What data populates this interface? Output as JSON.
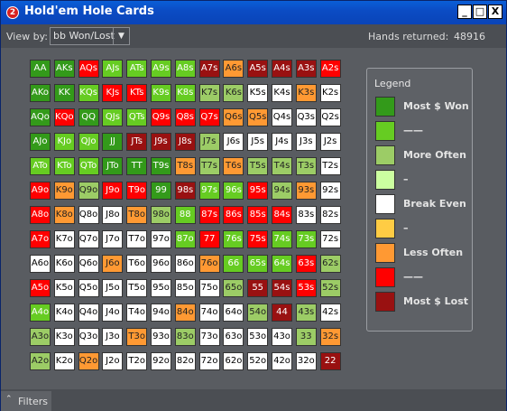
{
  "window": {
    "title": "Hold'em Hole Cards",
    "app_icon_text": "2",
    "min_symbol": "_",
    "max_symbol": "□",
    "close_symbol": "X"
  },
  "toolbar": {
    "viewby_label": "View by:",
    "viewby_value": "bb Won/Lost",
    "hands_label": "Hands returned:",
    "hands_value": "48916"
  },
  "legend": {
    "title": "Legend",
    "items": [
      {
        "label": "Most $ Won",
        "color": "#339a1a"
      },
      {
        "label": "——",
        "color": "#66cc22"
      },
      {
        "label": "More Often",
        "color": "#9ccc66"
      },
      {
        "label": "–",
        "color": "#ccffa0"
      },
      {
        "label": "Break Even",
        "color": "#ffffff"
      },
      {
        "label": "–",
        "color": "#ffcc44"
      },
      {
        "label": "Less Often",
        "color": "#ff9933"
      },
      {
        "label": "——",
        "color": "#ff0000"
      },
      {
        "label": "Most $ Lost",
        "color": "#991111"
      }
    ]
  },
  "palette": {
    "dg": "#339a1a",
    "g": "#66cc22",
    "lg": "#9ccc66",
    "vlg": "#ccffa0",
    "w": "#ffffff",
    "y": "#ffcc44",
    "o": "#ff9933",
    "r": "#ff0000",
    "dr": "#991111"
  },
  "grid": {
    "rows": [
      [
        "AA",
        "AKs",
        "AQs",
        "AJs",
        "ATs",
        "A9s",
        "A8s",
        "A7s",
        "A6s",
        "A5s",
        "A4s",
        "A3s",
        "A2s"
      ],
      [
        "AKo",
        "KK",
        "KQs",
        "KJs",
        "KTs",
        "K9s",
        "K8s",
        "K7s",
        "K6s",
        "K5s",
        "K4s",
        "K3s",
        "K2s"
      ],
      [
        "AQo",
        "KQo",
        "QQ",
        "QJs",
        "QTs",
        "Q9s",
        "Q8s",
        "Q7s",
        "Q6s",
        "Q5s",
        "Q4s",
        "Q3s",
        "Q2s"
      ],
      [
        "AJo",
        "KJo",
        "QJo",
        "JJ",
        "JTs",
        "J9s",
        "J8s",
        "J7s",
        "J6s",
        "J5s",
        "J4s",
        "J3s",
        "J2s"
      ],
      [
        "ATo",
        "KTo",
        "QTo",
        "JTo",
        "TT",
        "T9s",
        "T8s",
        "T7s",
        "T6s",
        "T5s",
        "T4s",
        "T3s",
        "T2s"
      ],
      [
        "A9o",
        "K9o",
        "Q9o",
        "J9o",
        "T9o",
        "99",
        "98s",
        "97s",
        "96s",
        "95s",
        "94s",
        "93s",
        "92s"
      ],
      [
        "A8o",
        "K8o",
        "Q8o",
        "J8o",
        "T8o",
        "98o",
        "88",
        "87s",
        "86s",
        "85s",
        "84s",
        "83s",
        "82s"
      ],
      [
        "A7o",
        "K7o",
        "Q7o",
        "J7o",
        "T7o",
        "97o",
        "87o",
        "77",
        "76s",
        "75s",
        "74s",
        "73s",
        "72s"
      ],
      [
        "A6o",
        "K6o",
        "Q6o",
        "J6o",
        "T6o",
        "96o",
        "86o",
        "76o",
        "66",
        "65s",
        "64s",
        "63s",
        "62s"
      ],
      [
        "A5o",
        "K5o",
        "Q5o",
        "J5o",
        "T5o",
        "95o",
        "85o",
        "75o",
        "65o",
        "55",
        "54s",
        "53s",
        "52s"
      ],
      [
        "A4o",
        "K4o",
        "Q4o",
        "J4o",
        "T4o",
        "94o",
        "84o",
        "74o",
        "64o",
        "54o",
        "44",
        "43s",
        "42s"
      ],
      [
        "A3o",
        "K3o",
        "Q3o",
        "J3o",
        "T3o",
        "93o",
        "83o",
        "73o",
        "63o",
        "53o",
        "43o",
        "33",
        "32s"
      ],
      [
        "A2o",
        "K2o",
        "Q2o",
        "J2o",
        "T2o",
        "92o",
        "82o",
        "72o",
        "62o",
        "52o",
        "42o",
        "32o",
        "22"
      ]
    ],
    "colors": [
      [
        "dg",
        "dg",
        "r",
        "g",
        "g",
        "g",
        "g",
        "dr",
        "o",
        "dr",
        "dr",
        "dr",
        "r"
      ],
      [
        "dg",
        "dg",
        "g",
        "r",
        "r",
        "g",
        "g",
        "lg",
        "lg",
        "w",
        "w",
        "o",
        "w"
      ],
      [
        "dg",
        "r",
        "dg",
        "g",
        "g",
        "r",
        "r",
        "r",
        "o",
        "o",
        "w",
        "w",
        "w"
      ],
      [
        "dg",
        "g",
        "g",
        "dg",
        "dr",
        "dr",
        "dr",
        "lg",
        "w",
        "w",
        "w",
        "w",
        "w"
      ],
      [
        "g",
        "g",
        "g",
        "dg",
        "dg",
        "dg",
        "o",
        "lg",
        "o",
        "lg",
        "lg",
        "lg",
        "w"
      ],
      [
        "r",
        "o",
        "lg",
        "r",
        "r",
        "dg",
        "dr",
        "g",
        "g",
        "r",
        "lg",
        "o",
        "w"
      ],
      [
        "r",
        "o",
        "w",
        "w",
        "o",
        "lg",
        "g",
        "r",
        "r",
        "r",
        "r",
        "w",
        "w"
      ],
      [
        "r",
        "w",
        "w",
        "w",
        "w",
        "w",
        "g",
        "r",
        "g",
        "r",
        "g",
        "g",
        "w"
      ],
      [
        "w",
        "w",
        "w",
        "o",
        "w",
        "w",
        "w",
        "o",
        "g",
        "g",
        "g",
        "r",
        "lg"
      ],
      [
        "r",
        "w",
        "w",
        "w",
        "w",
        "w",
        "w",
        "w",
        "lg",
        "dr",
        "dr",
        "r",
        "lg"
      ],
      [
        "g",
        "w",
        "w",
        "w",
        "w",
        "w",
        "o",
        "w",
        "w",
        "lg",
        "dr",
        "lg",
        "w"
      ],
      [
        "lg",
        "w",
        "w",
        "w",
        "o",
        "w",
        "lg",
        "w",
        "w",
        "w",
        "w",
        "lg",
        "o"
      ],
      [
        "lg",
        "w",
        "o",
        "w",
        "w",
        "w",
        "w",
        "w",
        "w",
        "w",
        "w",
        "w",
        "dr"
      ]
    ]
  },
  "footer": {
    "filters_label": "Filters",
    "filters_icon": "chevron-up-icon",
    "filters_symbol": "⌃"
  }
}
